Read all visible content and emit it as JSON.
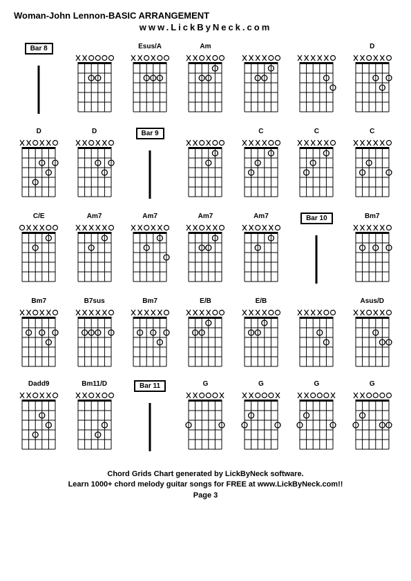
{
  "title": "Woman-John Lennon-BASIC ARRANGEMENT",
  "subtitle": "www.LickByNeck.com",
  "footer_line1": "Chord Grids Chart generated by LickByNeck software.",
  "footer_line2": "Learn 1000+ chord melody guitar songs for FREE at www.LickByNeck.com!!",
  "page_label": "Page 3",
  "strings": 6,
  "frets": 5,
  "chords": [
    {
      "label": "Bar 8",
      "is_bar": true,
      "marks": "------",
      "dots": [],
      "bar_line": true
    },
    {
      "label": "",
      "marks": "xxoooo",
      "dots": [
        [
          2,
          3
        ],
        [
          2,
          4
        ]
      ]
    },
    {
      "label": "Esus/A",
      "marks": "xxoxoo",
      "dots": [
        [
          2,
          3
        ],
        [
          2,
          4
        ],
        [
          2,
          5
        ]
      ]
    },
    {
      "label": "Am",
      "marks": "xxoxoo",
      "dots": [
        [
          2,
          3
        ],
        [
          2,
          4
        ],
        [
          1,
          5
        ]
      ]
    },
    {
      "label": "",
      "marks": "xxxxoo",
      "dots": [
        [
          2,
          3
        ],
        [
          2,
          4
        ],
        [
          1,
          5
        ]
      ]
    },
    {
      "label": "",
      "marks": "xxxxxo",
      "dots": [
        [
          2,
          5
        ],
        [
          3,
          6
        ]
      ]
    },
    {
      "label": "D",
      "marks": "xxoxxo",
      "dots": [
        [
          2,
          4
        ],
        [
          3,
          5
        ],
        [
          2,
          6
        ]
      ]
    },
    {
      "label": "D",
      "marks": "xxoxxo",
      "dots": [
        [
          4,
          3
        ],
        [
          2,
          4
        ],
        [
          3,
          5
        ],
        [
          2,
          6
        ]
      ]
    },
    {
      "label": "D",
      "marks": "xxoxxo",
      "dots": [
        [
          2,
          4
        ],
        [
          3,
          5
        ],
        [
          2,
          6
        ]
      ]
    },
    {
      "label": "Bar 9",
      "is_bar": true,
      "marks": "------",
      "dots": [],
      "bar_line": true
    },
    {
      "label": "",
      "marks": "xxoxoo",
      "dots": [
        [
          2,
          4
        ],
        [
          1,
          5
        ]
      ]
    },
    {
      "label": "C",
      "marks": "xxxxoo",
      "dots": [
        [
          3,
          2
        ],
        [
          2,
          3
        ],
        [
          1,
          5
        ]
      ]
    },
    {
      "label": "C",
      "marks": "xxxxxo",
      "dots": [
        [
          3,
          2
        ],
        [
          2,
          3
        ],
        [
          1,
          5
        ]
      ]
    },
    {
      "label": "C",
      "marks": "xxxxxo",
      "dots": [
        [
          3,
          2
        ],
        [
          2,
          3
        ],
        [
          3,
          6
        ]
      ]
    },
    {
      "label": "C/E",
      "marks": "oxxxoo",
      "dots": [
        [
          2,
          3
        ],
        [
          1,
          5
        ]
      ]
    },
    {
      "label": "Am7",
      "marks": "xxxxxo",
      "dots": [
        [
          2,
          3
        ],
        [
          1,
          5
        ]
      ]
    },
    {
      "label": "Am7",
      "marks": "xxoxxo",
      "dots": [
        [
          2,
          3
        ],
        [
          1,
          5
        ],
        [
          3,
          6
        ]
      ]
    },
    {
      "label": "Am7",
      "marks": "xxoxxo",
      "dots": [
        [
          2,
          3
        ],
        [
          2,
          4
        ],
        [
          1,
          5
        ]
      ]
    },
    {
      "label": "Am7",
      "marks": "xxoxxo",
      "dots": [
        [
          2,
          3
        ],
        [
          1,
          5
        ]
      ]
    },
    {
      "label": "Bar 10",
      "is_bar": true,
      "marks": "------",
      "dots": [],
      "bar_line": true
    },
    {
      "label": "Bm7",
      "marks": "xxxxxo",
      "dots": [
        [
          2,
          2
        ],
        [
          2,
          4
        ],
        [
          2,
          6
        ]
      ]
    },
    {
      "label": "Bm7",
      "marks": "xxoxxo",
      "dots": [
        [
          2,
          2
        ],
        [
          2,
          4
        ],
        [
          3,
          5
        ],
        [
          2,
          6
        ]
      ]
    },
    {
      "label": "B7sus",
      "marks": "xxxxxo",
      "dots": [
        [
          2,
          2
        ],
        [
          2,
          3
        ],
        [
          2,
          4
        ],
        [
          2,
          6
        ]
      ]
    },
    {
      "label": "Bm7",
      "marks": "xxxxxo",
      "dots": [
        [
          2,
          2
        ],
        [
          2,
          4
        ],
        [
          3,
          5
        ],
        [
          2,
          6
        ]
      ]
    },
    {
      "label": "E/B",
      "marks": "xxxxoo",
      "dots": [
        [
          2,
          2
        ],
        [
          2,
          3
        ],
        [
          1,
          4
        ]
      ]
    },
    {
      "label": "E/B",
      "marks": "xxxxoo",
      "dots": [
        [
          2,
          2
        ],
        [
          2,
          3
        ],
        [
          1,
          4
        ]
      ]
    },
    {
      "label": "",
      "marks": "xxxxoo",
      "dots": [
        [
          2,
          4
        ],
        [
          3,
          5
        ]
      ]
    },
    {
      "label": "Asus/D",
      "marks": "xxoxxo",
      "dots": [
        [
          2,
          4
        ],
        [
          3,
          5
        ],
        [
          3,
          6
        ]
      ]
    },
    {
      "label": "Dadd9",
      "marks": "xxoxxo",
      "dots": [
        [
          4,
          3
        ],
        [
          2,
          4
        ],
        [
          3,
          5
        ]
      ]
    },
    {
      "label": "Bm11/D",
      "marks": "xxoxoo",
      "dots": [
        [
          4,
          4
        ],
        [
          3,
          5
        ]
      ]
    },
    {
      "label": "Bar 11",
      "is_bar": true,
      "marks": "------",
      "dots": [],
      "bar_line": true
    },
    {
      "label": "G",
      "marks": "xxooox",
      "dots": [
        [
          3,
          1
        ],
        [
          3,
          6
        ]
      ]
    },
    {
      "label": "G",
      "marks": "xxooox",
      "dots": [
        [
          3,
          1
        ],
        [
          2,
          2
        ],
        [
          3,
          6
        ]
      ]
    },
    {
      "label": "G",
      "marks": "xxooox",
      "dots": [
        [
          3,
          1
        ],
        [
          2,
          2
        ],
        [
          3,
          6
        ]
      ]
    },
    {
      "label": "G",
      "marks": "xxoooo",
      "dots": [
        [
          3,
          1
        ],
        [
          2,
          2
        ],
        [
          3,
          5
        ],
        [
          3,
          6
        ]
      ]
    }
  ]
}
